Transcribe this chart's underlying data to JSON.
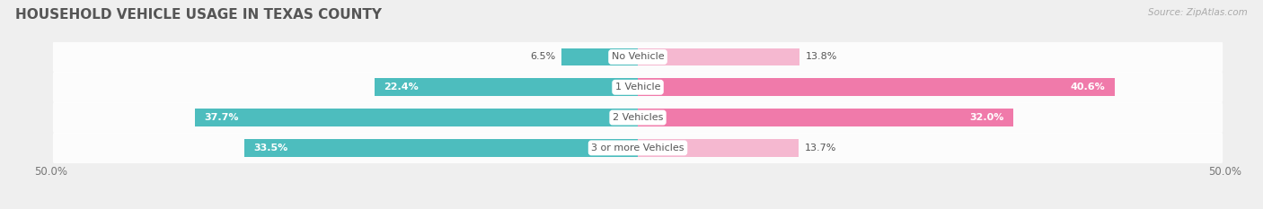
{
  "title": "HOUSEHOLD VEHICLE USAGE IN TEXAS COUNTY",
  "source": "Source: ZipAtlas.com",
  "categories": [
    "No Vehicle",
    "1 Vehicle",
    "2 Vehicles",
    "3 or more Vehicles"
  ],
  "owner_values": [
    6.5,
    22.4,
    37.7,
    33.5
  ],
  "renter_values": [
    13.8,
    40.6,
    32.0,
    13.7
  ],
  "owner_color": "#4dbdbe",
  "renter_color": "#f07aaa",
  "renter_color_light": "#f5b8d0",
  "x_max": 50.0,
  "x_min": -50.0,
  "background_color": "#efefef",
  "row_bg_color": "#e2e2e2",
  "title_fontsize": 11,
  "label_fontsize": 8.5,
  "tick_fontsize": 8.5,
  "source_fontsize": 7.5
}
